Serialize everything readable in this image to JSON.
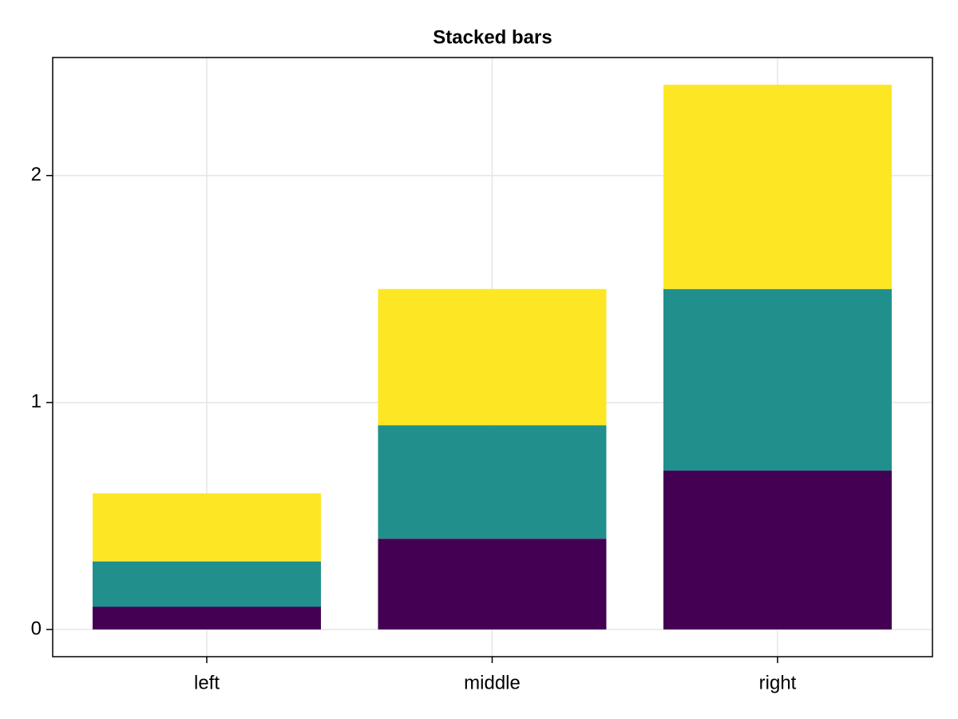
{
  "chart_data": {
    "type": "stacked_bar",
    "title": "Stacked bars",
    "categories": [
      "left",
      "middle",
      "right"
    ],
    "series": [
      {
        "color": "#440154",
        "values": [
          0.1,
          0.4,
          0.7
        ]
      },
      {
        "color": "#21908d",
        "values": [
          0.2,
          0.5,
          0.8
        ]
      },
      {
        "color": "#fde725",
        "values": [
          0.3,
          0.6,
          0.9
        ]
      }
    ],
    "ylim": [
      -0.12,
      2.52
    ],
    "yticks": [
      0,
      1,
      2
    ],
    "grid": true
  }
}
